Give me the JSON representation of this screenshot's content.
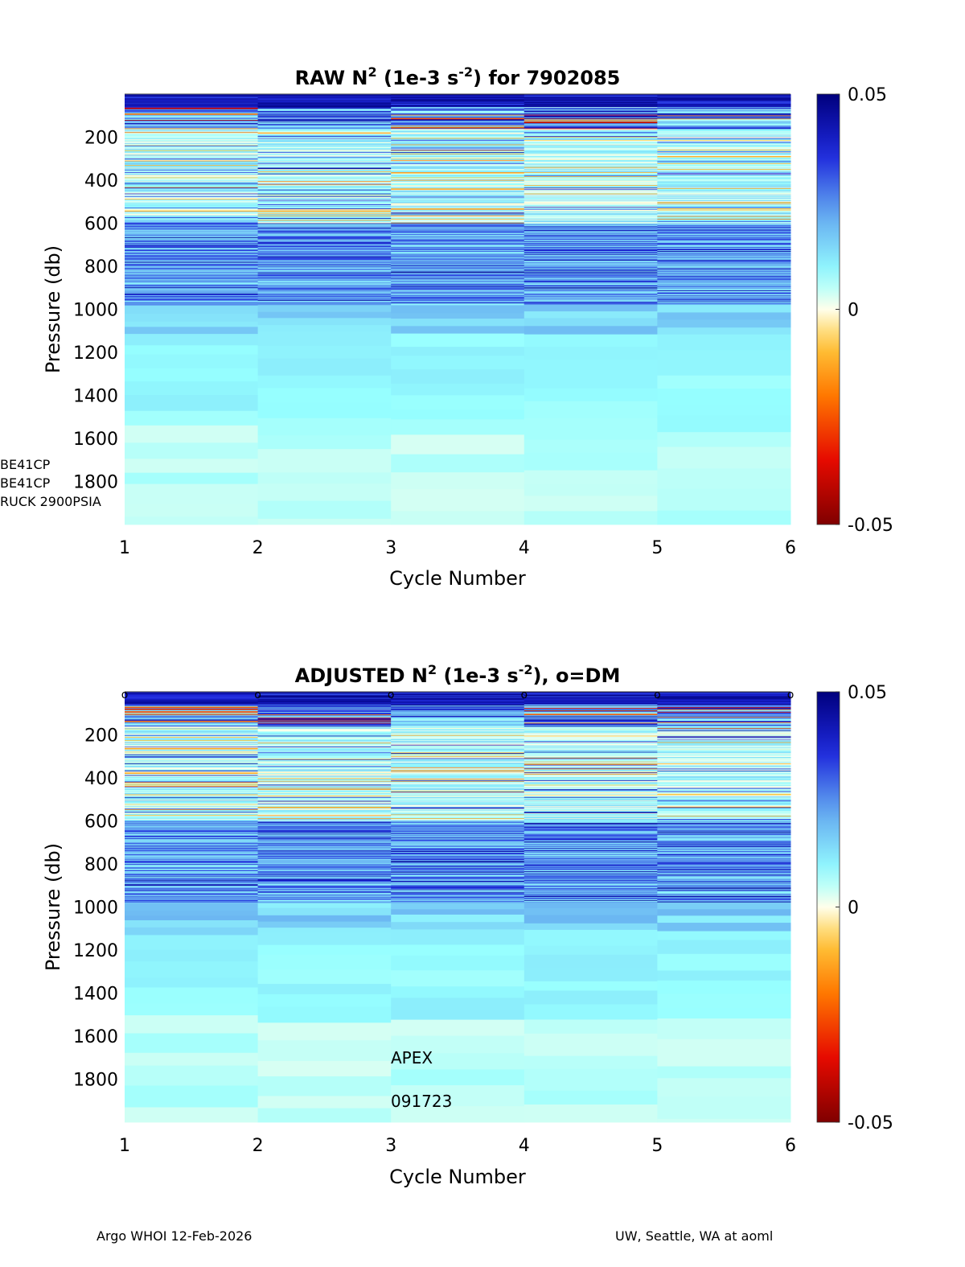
{
  "chart_data": [
    {
      "type": "heatmap",
      "title_prefix": "RAW N",
      "title_sup1": "2",
      "title_mid": " (1e-3 s",
      "title_sup2": "-2",
      "title_suffix": ") for 7902085",
      "xlabel": "Cycle Number",
      "ylabel": "Pressure (db)",
      "xticks": [
        "1",
        "2",
        "3",
        "4",
        "5",
        "6"
      ],
      "yticks": [
        "200",
        "400",
        "600",
        "800",
        "1000",
        "1200",
        "1400",
        "1600",
        "1800"
      ],
      "yrange": [
        0,
        2000
      ],
      "cycles": [
        1,
        2,
        3,
        4,
        5
      ],
      "colorbar": {
        "ticks": [
          "0.05",
          "0",
          "-0.05"
        ],
        "range": [
          -0.05,
          0.05
        ]
      },
      "side_labels": [
        "BE41CP",
        "BE41CP",
        "RUCK 2900PSIA"
      ],
      "dm_markers": false,
      "seed": 11
    },
    {
      "type": "heatmap",
      "title_prefix": "ADJUSTED N",
      "title_sup1": "2",
      "title_mid": " (1e-3 s",
      "title_sup2": "-2",
      "title_suffix": "), o=DM",
      "xlabel": "Cycle Number",
      "ylabel": "Pressure (db)",
      "xticks": [
        "1",
        "2",
        "3",
        "4",
        "5",
        "6"
      ],
      "yticks": [
        "200",
        "400",
        "600",
        "800",
        "1000",
        "1200",
        "1400",
        "1600",
        "1800"
      ],
      "yrange": [
        0,
        2000
      ],
      "cycles": [
        1,
        2,
        3,
        4,
        5
      ],
      "colorbar": {
        "ticks": [
          "0.05",
          "0",
          "-0.05"
        ],
        "range": [
          -0.05,
          0.05
        ]
      },
      "annotations": [
        "APEX",
        "091723"
      ],
      "dm_markers": true,
      "dm_marker_text": "o",
      "seed": 23
    }
  ],
  "footer": {
    "left": "Argo WHOI 12-Feb-2026",
    "right": "UW, Seattle, WA at aoml"
  }
}
